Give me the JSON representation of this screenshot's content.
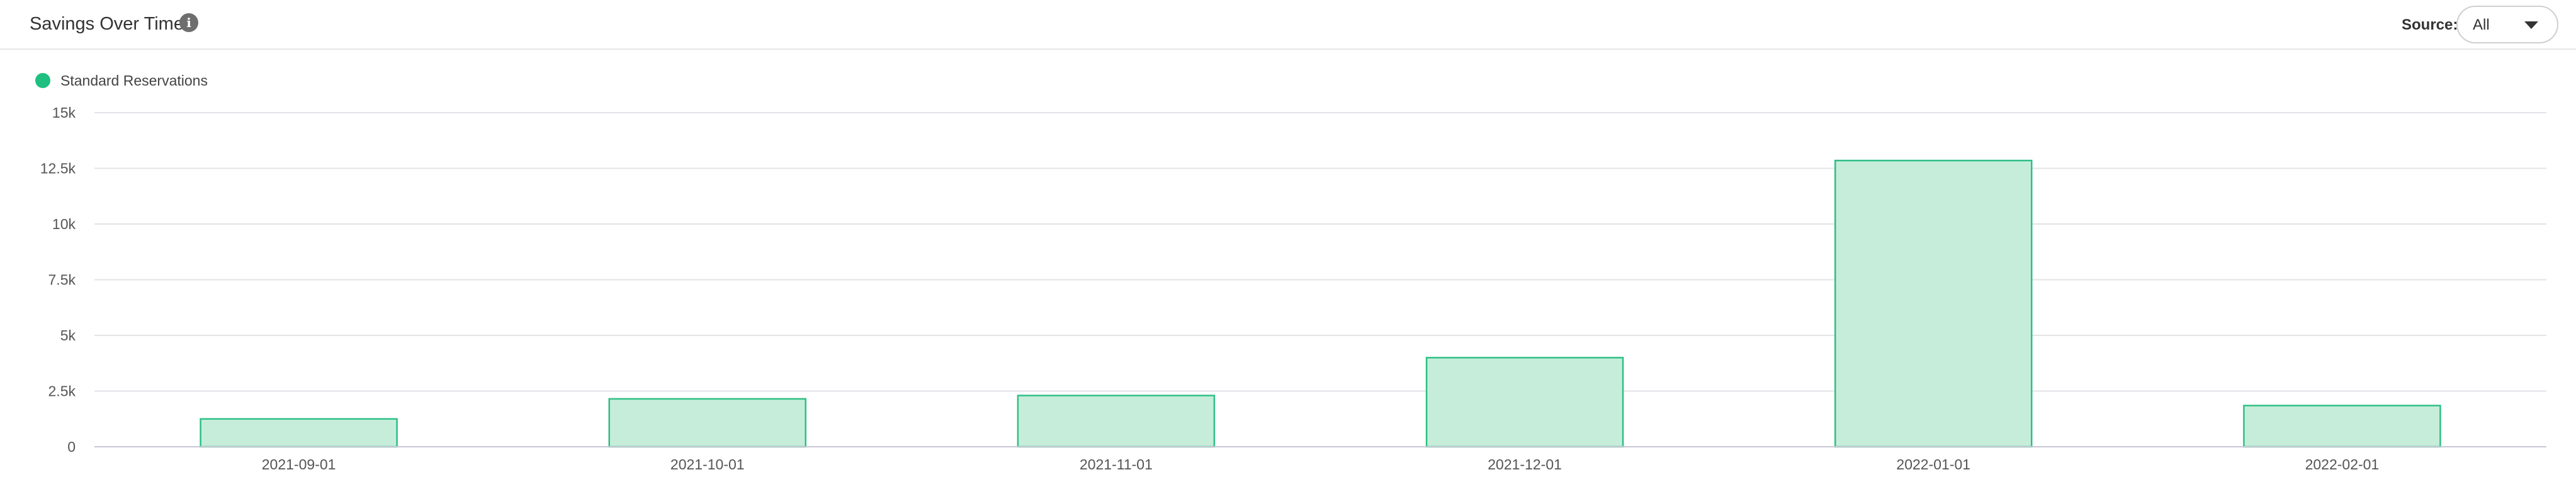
{
  "header": {
    "title": "Savings Over Time",
    "info_icon": "info-icon",
    "source_label": "Source:",
    "source_value": "All",
    "source_caret_icon": "chevron-down-icon"
  },
  "colors": {
    "series_fill": "#c6edda",
    "series_stroke": "#2ebf85",
    "legend_dot": "#1fbf7f",
    "grid": "#e3e3e8",
    "axis": "#c7c7d6",
    "tick_text": "#555555"
  },
  "chart_data": {
    "type": "bar",
    "categories": [
      "2021-09-01",
      "2021-10-01",
      "2021-11-01",
      "2021-12-01",
      "2022-01-01",
      "2022-02-01"
    ],
    "series": [
      {
        "name": "Standard Reservations",
        "values": [
          1250,
          2150,
          2300,
          4000,
          12850,
          1850
        ]
      }
    ],
    "title": "",
    "xlabel": "",
    "ylabel": "",
    "ylim": [
      0,
      15000
    ],
    "yticks": [
      0,
      2500,
      5000,
      7500,
      10000,
      12500,
      15000
    ],
    "ytick_labels": [
      "0",
      "2.5k",
      "5k",
      "7.5k",
      "10k",
      "12.5k",
      "15k"
    ],
    "grid": true,
    "legend": "top-left"
  }
}
